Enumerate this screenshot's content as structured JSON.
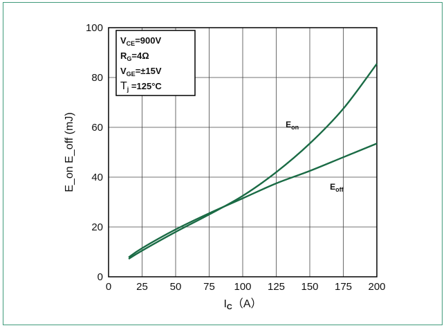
{
  "chart_data": {
    "type": "line",
    "xlabel": {
      "main": "I",
      "sub": "C",
      "rest": "（A）"
    },
    "ylabel": "E_on E_off (mJ)",
    "xlim": [
      0,
      200
    ],
    "ylim": [
      0,
      100
    ],
    "x_ticks": [
      {
        "value": 0,
        "label": "0"
      },
      {
        "value": 25,
        "label": "25"
      },
      {
        "value": 50,
        "label": "50"
      },
      {
        "value": 75,
        "label": "75"
      },
      {
        "value": 100,
        "label": "100"
      },
      {
        "value": 125,
        "label": "125"
      },
      {
        "value": 150,
        "label": "150"
      },
      {
        "value": 175,
        "label": "175"
      },
      {
        "value": 200,
        "label": "200"
      }
    ],
    "y_ticks": [
      {
        "value": 0,
        "label": "0"
      },
      {
        "value": 20,
        "label": "20"
      },
      {
        "value": 40,
        "label": "40"
      },
      {
        "value": 60,
        "label": "60"
      },
      {
        "value": 80,
        "label": "80"
      },
      {
        "value": 100,
        "label": "100"
      }
    ],
    "grid": true,
    "legend_box": {
      "placement": "top-left",
      "lines": [
        {
          "main": "V",
          "sub": "CE",
          "rest": "=900V"
        },
        {
          "main": "R",
          "sub": "G",
          "rest": "=4Ω"
        },
        {
          "main": "V",
          "sub": "GE",
          "rest": "=±15V"
        },
        {
          "main": "T",
          "sub": "j",
          "rest": " =125°C"
        }
      ]
    },
    "series": [
      {
        "name": "E_on",
        "label": {
          "main": "E",
          "sub": "on"
        },
        "color": "#1a6b45",
        "x": [
          15,
          25,
          50,
          75,
          100,
          125,
          150,
          175,
          200
        ],
        "y": [
          7.2,
          10.5,
          18,
          25,
          32.5,
          42,
          53.5,
          67.5,
          85.5
        ]
      },
      {
        "name": "E_off",
        "label": {
          "main": "E",
          "sub": "off"
        },
        "color": "#1a6b45",
        "x": [
          15,
          25,
          50,
          75,
          100,
          125,
          150,
          175,
          200
        ],
        "y": [
          7.8,
          11.5,
          19,
          25.5,
          31.5,
          37.5,
          42.5,
          48,
          53.5
        ]
      }
    ]
  }
}
